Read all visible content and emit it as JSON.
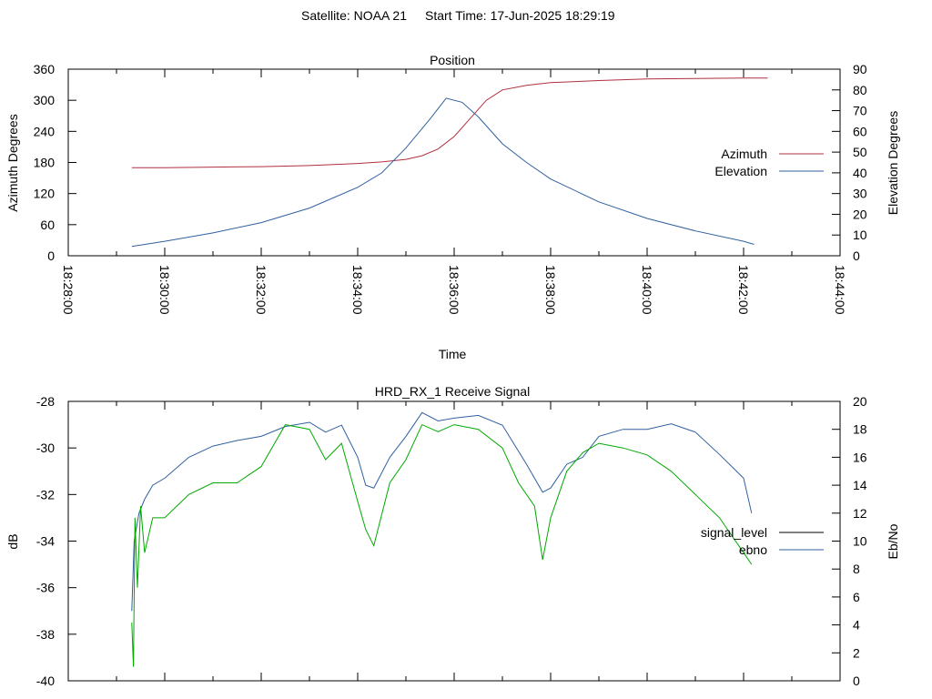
{
  "header": {
    "satellite": "Satellite: NOAA 21",
    "start_time": "Start Time: 17-Jun-2025 18:29:19"
  },
  "chart_data": [
    {
      "type": "line",
      "title": "Position",
      "xlabel": "Time",
      "ylabel": "Azimuth Degrees",
      "y2label": "Elevation Degrees",
      "xlim": [
        "18:28:00",
        "18:44:00"
      ],
      "xticks": [
        "18:28:00",
        "18:30:00",
        "18:32:00",
        "18:34:00",
        "18:36:00",
        "18:38:00",
        "18:40:00",
        "18:42:00",
        "18:44:00"
      ],
      "ylim": [
        0,
        360
      ],
      "yticks": [
        0,
        60,
        120,
        180,
        240,
        300,
        360
      ],
      "y2lim": [
        0,
        90
      ],
      "y2ticks": [
        0,
        10,
        20,
        30,
        40,
        50,
        60,
        70,
        80,
        90
      ],
      "grid": false,
      "legend_position": "right",
      "series": [
        {
          "name": "Azimuth",
          "axis": "left",
          "color": "#b03040",
          "x": [
            "18:29:19",
            "18:30:00",
            "18:31:00",
            "18:32:00",
            "18:33:00",
            "18:34:00",
            "18:34:30",
            "18:35:00",
            "18:35:20",
            "18:35:40",
            "18:36:00",
            "18:36:20",
            "18:36:40",
            "18:37:00",
            "18:37:30",
            "18:38:00",
            "18:39:00",
            "18:40:00",
            "18:41:00",
            "18:42:00",
            "18:42:30"
          ],
          "values": [
            170,
            170,
            171,
            172,
            174,
            178,
            181,
            186,
            193,
            206,
            230,
            265,
            300,
            320,
            329,
            334,
            338,
            341,
            342,
            343,
            343
          ]
        },
        {
          "name": "Elevation",
          "axis": "right",
          "color": "#3060a0",
          "x": [
            "18:29:19",
            "18:30:00",
            "18:31:00",
            "18:32:00",
            "18:33:00",
            "18:34:00",
            "18:34:30",
            "18:35:00",
            "18:35:30",
            "18:35:50",
            "18:36:10",
            "18:36:30",
            "18:37:00",
            "18:37:30",
            "18:38:00",
            "18:39:00",
            "18:40:00",
            "18:41:00",
            "18:42:00",
            "18:42:13"
          ],
          "values": [
            4.5,
            7,
            11,
            16,
            23,
            33,
            40,
            52,
            66,
            76,
            74,
            67,
            54,
            45,
            37,
            26,
            18,
            12,
            7,
            5.5
          ]
        }
      ]
    },
    {
      "type": "line",
      "title": "HRD_RX_1 Receive Signal",
      "xlabel": "",
      "ylabel": "dB",
      "y2label": "Eb/No",
      "xlim": [
        "18:28:00",
        "18:44:00"
      ],
      "ylim": [
        -40,
        -28
      ],
      "yticks": [
        -40,
        -38,
        -36,
        -34,
        -32,
        -30,
        -28
      ],
      "y2lim": [
        0,
        20
      ],
      "y2ticks": [
        0,
        2,
        4,
        6,
        8,
        10,
        12,
        14,
        16,
        18,
        20
      ],
      "grid": false,
      "legend_position": "right",
      "series": [
        {
          "name": "signal_level",
          "axis": "left",
          "color": "#000000",
          "x": [],
          "values": []
        },
        {
          "name": "ebno",
          "axis": "right",
          "color": "#3060a0",
          "x": [
            "18:29:19",
            "18:29:22",
            "18:29:28",
            "18:29:35",
            "18:29:45",
            "18:30:00",
            "18:30:30",
            "18:31:00",
            "18:31:30",
            "18:32:00",
            "18:32:30",
            "18:33:00",
            "18:33:20",
            "18:33:40",
            "18:34:00",
            "18:34:10",
            "18:34:20",
            "18:34:40",
            "18:35:00",
            "18:35:20",
            "18:35:40",
            "18:36:00",
            "18:36:30",
            "18:37:00",
            "18:37:30",
            "18:37:50",
            "18:38:00",
            "18:38:20",
            "18:38:40",
            "18:39:00",
            "18:39:30",
            "18:40:00",
            "18:40:30",
            "18:41:00",
            "18:41:30",
            "18:42:00",
            "18:42:10"
          ],
          "values": [
            5,
            10,
            12,
            13,
            14,
            14.5,
            16,
            16.8,
            17.2,
            17.5,
            18.2,
            18.5,
            17.8,
            18.3,
            16,
            14,
            13.8,
            16,
            17.5,
            19.2,
            18.6,
            18.8,
            19,
            18.3,
            15.5,
            13.5,
            13.8,
            15.5,
            16,
            17.5,
            18,
            18,
            18.4,
            17.8,
            16.2,
            14.5,
            12
          ]
        },
        {
          "name": "",
          "axis": "left",
          "color": "#00aa00",
          "x": [
            "18:29:19",
            "18:29:21",
            "18:29:23",
            "18:29:26",
            "18:29:30",
            "18:29:35",
            "18:29:45",
            "18:30:00",
            "18:30:30",
            "18:31:00",
            "18:31:30",
            "18:32:00",
            "18:32:30",
            "18:33:00",
            "18:33:20",
            "18:33:40",
            "18:34:00",
            "18:34:10",
            "18:34:20",
            "18:34:40",
            "18:35:00",
            "18:35:20",
            "18:35:40",
            "18:36:00",
            "18:36:30",
            "18:37:00",
            "18:37:20",
            "18:37:40",
            "18:37:50",
            "18:38:00",
            "18:38:20",
            "18:38:40",
            "18:39:00",
            "18:39:30",
            "18:40:00",
            "18:40:30",
            "18:41:00",
            "18:41:30",
            "18:42:00",
            "18:42:10"
          ],
          "values": [
            -37.5,
            -39.4,
            -33,
            -36,
            -32.5,
            -34.5,
            -33,
            -33,
            -32,
            -31.5,
            -31.5,
            -30.8,
            -29,
            -29.2,
            -30.5,
            -29.8,
            -32.3,
            -33.5,
            -34.2,
            -31.5,
            -30.5,
            -29,
            -29.3,
            -29,
            -29.2,
            -30,
            -31.5,
            -32.5,
            -34.8,
            -33,
            -31,
            -30.2,
            -29.8,
            -30,
            -30.3,
            -31,
            -32,
            -33,
            -34.5,
            -35
          ]
        }
      ]
    }
  ]
}
